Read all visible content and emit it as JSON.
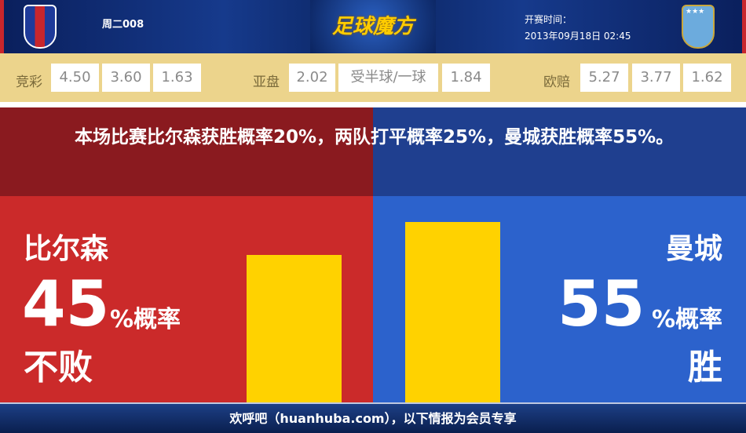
{
  "header": {
    "match_no": "周二008",
    "brand": "足球魔方",
    "kickoff_label": "开赛时间：",
    "kickoff_time": "2013年09月18日 02:45",
    "home_logo": "FC Viktoria Plzeň crest",
    "away_logo": "Manchester City crest"
  },
  "odds": {
    "jingcai": {
      "label": "竞彩",
      "values": [
        "4.50",
        "3.60",
        "1.63"
      ]
    },
    "yapan": {
      "label": "亚盘",
      "values": [
        "2.02",
        "受半球/一球",
        "1.84"
      ]
    },
    "ouzhou": {
      "label": "欧赔",
      "values": [
        "5.27",
        "3.77",
        "1.62"
      ]
    }
  },
  "message": "本场比赛比尔森获胜概率20%，两队打平概率25%，曼城获胜概率55%。",
  "home": {
    "name": "比尔森",
    "percent": "45",
    "percent_label": "%概率",
    "result": "不败",
    "bar_value": 45,
    "color": "#cb2a2a"
  },
  "away": {
    "name": "曼城",
    "percent": "55",
    "percent_label": "%概率",
    "result": "胜",
    "bar_value": 55,
    "color": "#2c62cc"
  },
  "bar_color": "#ffd200",
  "footer": "欢呼吧（huanhuba.com），以下情报为会员专享"
}
